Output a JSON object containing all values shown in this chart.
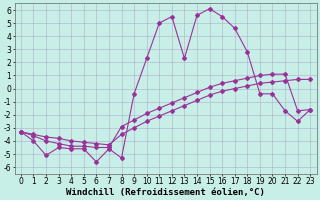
{
  "xlabel": "Windchill (Refroidissement éolien,°C)",
  "bg_color": "#c8eee8",
  "grid_color": "#b0b0c8",
  "line_color": "#993399",
  "xlim": [
    -0.5,
    23.5
  ],
  "ylim": [
    -6.5,
    6.5
  ],
  "xticks": [
    0,
    1,
    2,
    3,
    4,
    5,
    6,
    7,
    8,
    9,
    10,
    11,
    12,
    13,
    14,
    15,
    16,
    17,
    18,
    19,
    20,
    21,
    22,
    23
  ],
  "yticks": [
    -6,
    -5,
    -4,
    -3,
    -2,
    -1,
    0,
    1,
    2,
    3,
    4,
    5,
    6
  ],
  "line1_x": [
    0,
    1,
    2,
    3,
    4,
    5,
    6,
    7,
    8,
    9,
    10,
    11,
    12,
    13,
    14,
    15,
    16,
    17,
    18,
    19,
    20,
    21,
    22,
    23
  ],
  "line1_y": [
    -3.3,
    -4.0,
    -5.1,
    -4.5,
    -4.6,
    -4.6,
    -5.6,
    -4.6,
    -5.3,
    -0.4,
    2.3,
    5.0,
    5.5,
    2.3,
    5.6,
    6.1,
    5.5,
    4.6,
    2.8,
    -0.4,
    -0.4,
    -1.7,
    -2.5,
    -1.6
  ],
  "line2_x": [
    0,
    1,
    2,
    3,
    4,
    5,
    6,
    7,
    8,
    9,
    10,
    11,
    12,
    13,
    14,
    15,
    16,
    17,
    18,
    19,
    20,
    21,
    22,
    23
  ],
  "line2_y": [
    -3.3,
    -3.5,
    -3.7,
    -3.8,
    -4.0,
    -4.1,
    -4.2,
    -4.3,
    -3.5,
    -3.0,
    -2.5,
    -2.1,
    -1.7,
    -1.3,
    -0.9,
    -0.5,
    -0.2,
    0.0,
    0.2,
    0.4,
    0.5,
    0.6,
    0.7,
    0.7
  ],
  "line3_x": [
    0,
    1,
    2,
    3,
    4,
    5,
    6,
    7,
    8,
    9,
    10,
    11,
    12,
    13,
    14,
    15,
    16,
    17,
    18,
    19,
    20,
    21,
    22,
    23
  ],
  "line3_y": [
    -3.3,
    -3.6,
    -4.0,
    -4.2,
    -4.4,
    -4.4,
    -4.5,
    -4.5,
    -2.9,
    -2.4,
    -1.9,
    -1.5,
    -1.1,
    -0.7,
    -0.3,
    0.1,
    0.4,
    0.6,
    0.8,
    1.0,
    1.1,
    1.1,
    -1.7,
    -1.6
  ],
  "marker_size": 2,
  "line_width": 0.8,
  "xlabel_fontsize": 6.5,
  "tick_fontsize": 5.5
}
